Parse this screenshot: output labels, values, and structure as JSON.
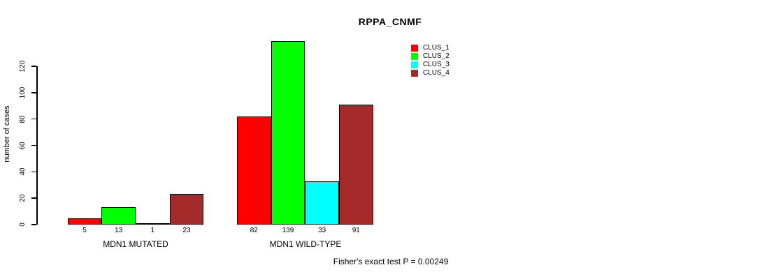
{
  "chart_data": {
    "type": "bar",
    "title": "RPPA_CNMF",
    "ylabel": "number of cases",
    "ylim": [
      0,
      140
    ],
    "yticks": [
      0,
      20,
      40,
      60,
      80,
      100,
      120
    ],
    "categories": [
      "MDN1 MUTATED",
      "MDN1 WILD-TYPE"
    ],
    "series": [
      {
        "name": "CLUS_1",
        "color": "#FF0000",
        "values": [
          5,
          82
        ]
      },
      {
        "name": "CLUS_2",
        "color": "#00FF00",
        "values": [
          13,
          139
        ]
      },
      {
        "name": "CLUS_3",
        "color": "#00FFFF",
        "values": [
          1,
          33
        ]
      },
      {
        "name": "CLUS_4",
        "color": "#A52A2A",
        "values": [
          23,
          91
        ]
      }
    ],
    "bar_value_labels": [
      [
        5,
        13,
        1,
        23
      ],
      [
        82,
        139,
        33,
        91
      ]
    ],
    "legend_position": "top-right",
    "grid": false
  },
  "footer": {
    "text": "Fisher's exact test P = 0.00249"
  }
}
